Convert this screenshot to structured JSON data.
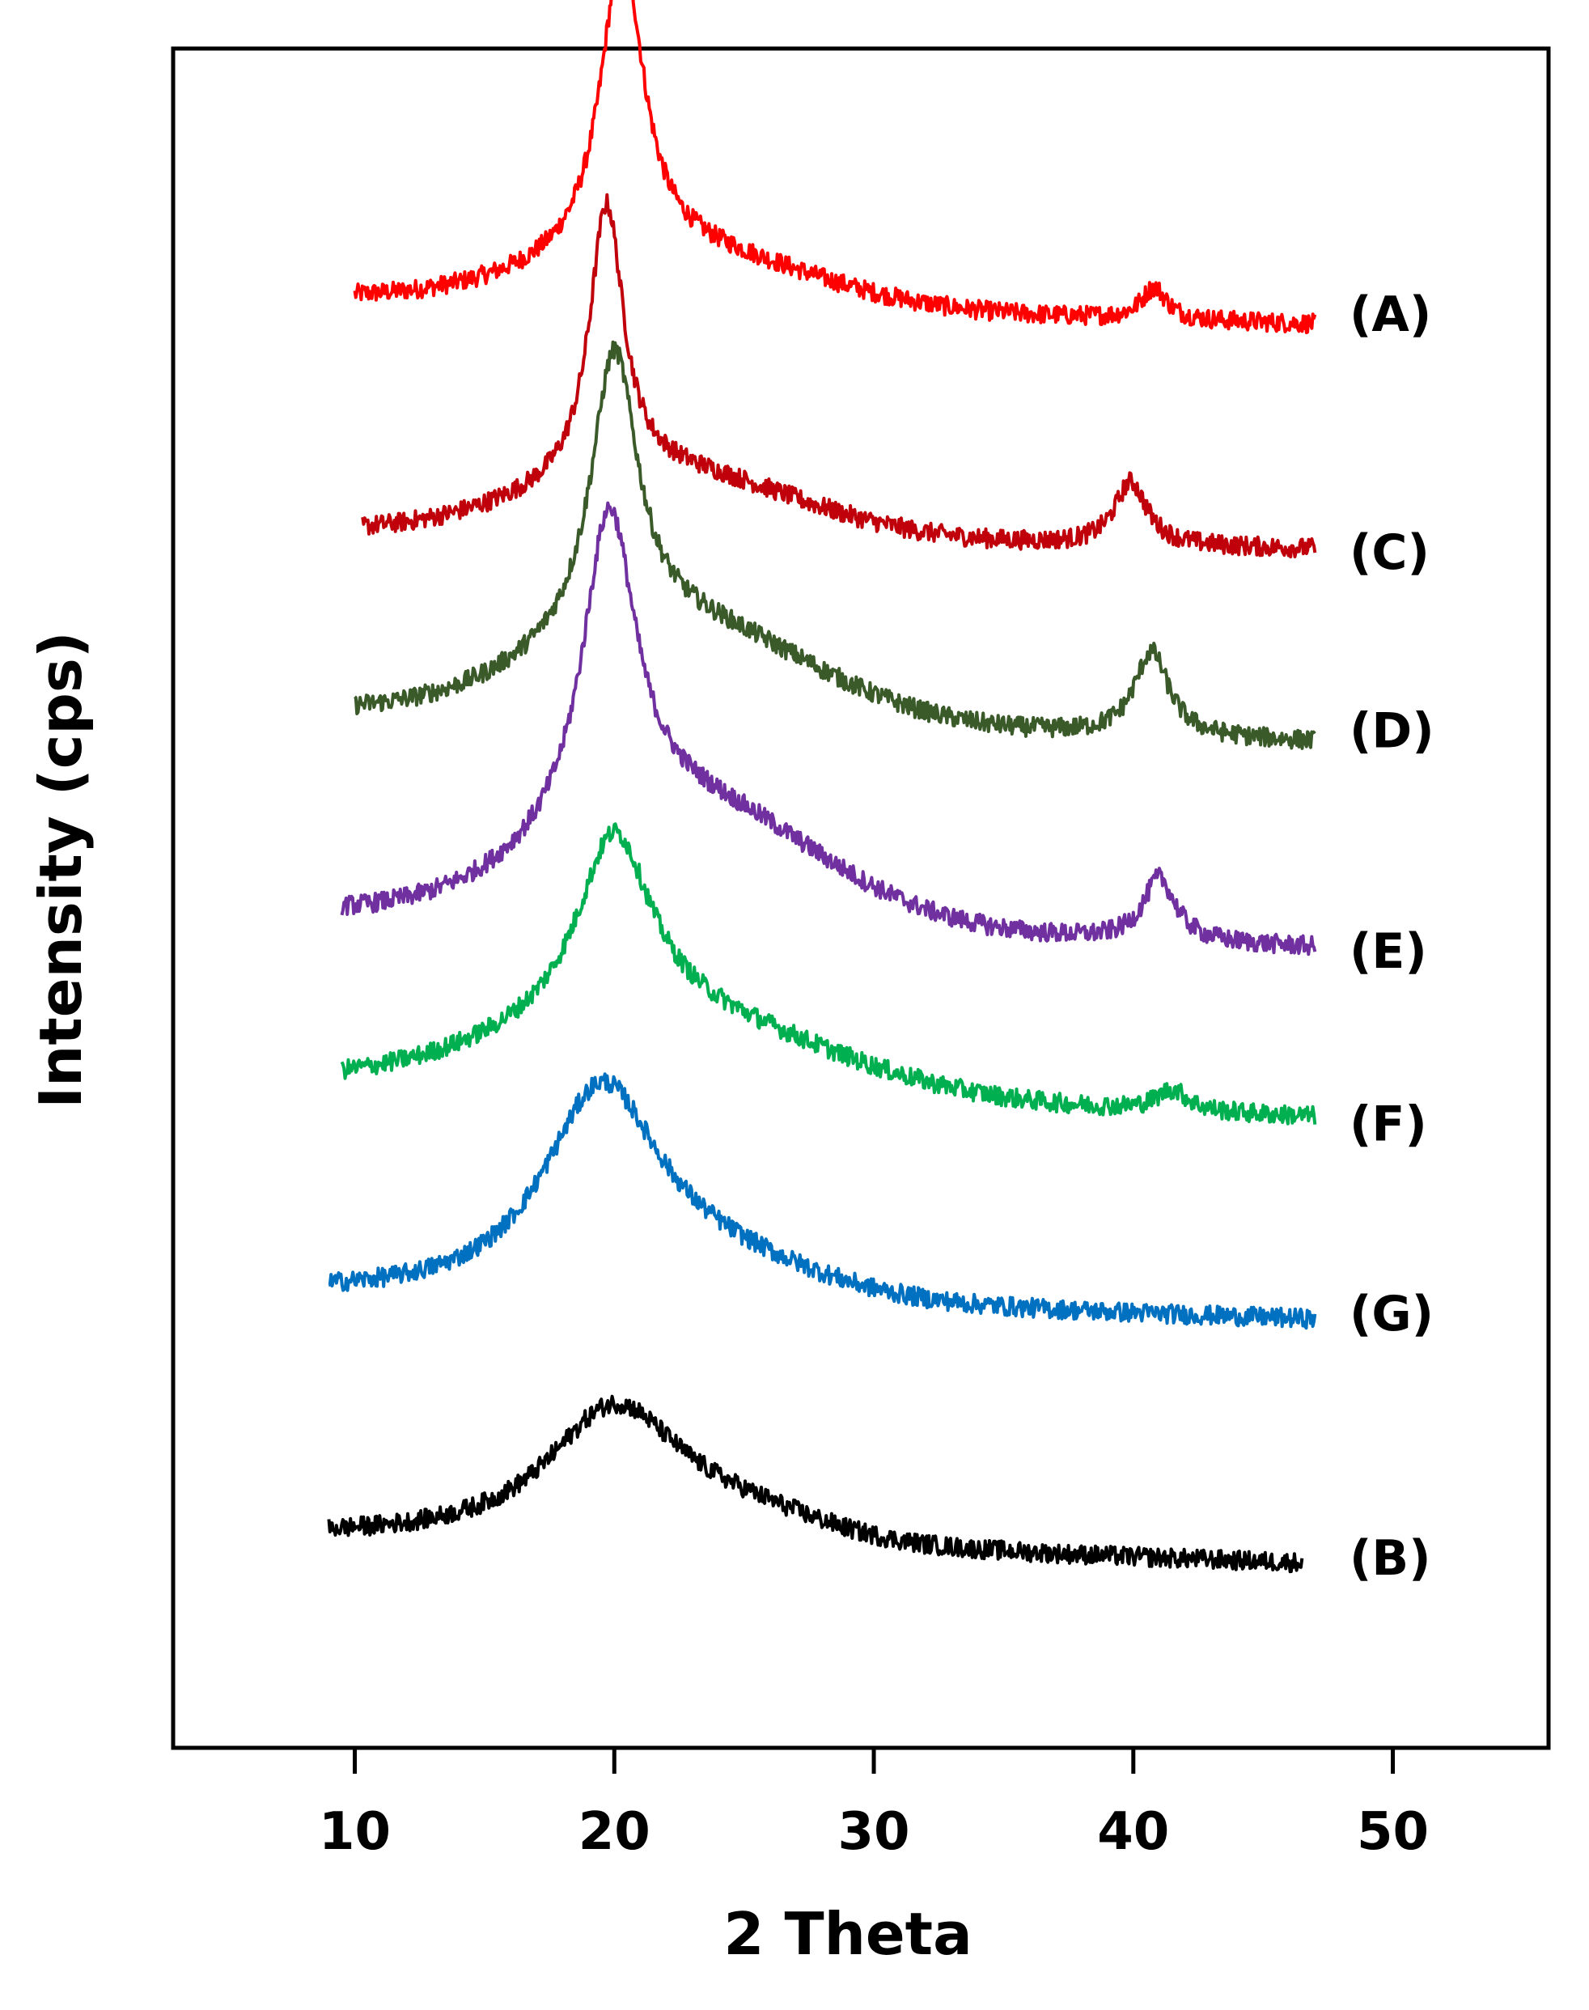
{
  "chart_data": {
    "type": "line",
    "title": "",
    "xlabel": "2 Theta",
    "ylabel": "Intensity (cps)",
    "xlim": [
      3,
      56
    ],
    "xticks": [
      10,
      20,
      30,
      40,
      50
    ],
    "y_ticks_shown": false,
    "grid": false,
    "legend": "inline labels at right end of each trace",
    "series": [
      {
        "name": "(A)",
        "color": "#ff0000",
        "x_start": 10,
        "x_end": 47,
        "offset": 6,
        "baseline": 0.3,
        "peaks": [
          {
            "x": 20.3,
            "height": 1.45,
            "width": 2.0
          },
          {
            "x": 40.8,
            "height": 0.15,
            "width": 1.2
          }
        ],
        "hump": {
          "x": 22.5,
          "height": 0.25,
          "width": 5
        }
      },
      {
        "name": "(C)",
        "color": "#c0000a",
        "x_start": 10.3,
        "x_end": 47,
        "offset": 5,
        "baseline": 0.2,
        "peaks": [
          {
            "x": 19.7,
            "height": 1.3,
            "width": 1.6
          },
          {
            "x": 39.9,
            "height": 0.3,
            "width": 1.5
          }
        ],
        "hump": {
          "x": 22,
          "height": 0.3,
          "width": 5
        }
      },
      {
        "name": "(D)",
        "color": "#3b5a2a",
        "x_start": 10,
        "x_end": 47,
        "offset": 4,
        "baseline": 0.35,
        "peaks": [
          {
            "x": 20.0,
            "height": 1.35,
            "width": 2.2
          },
          {
            "x": 40.7,
            "height": 0.4,
            "width": 1.6
          }
        ],
        "hump": {
          "x": 22.5,
          "height": 0.45,
          "width": 5
        }
      },
      {
        "name": "(E)",
        "color": "#7030a0",
        "x_start": 9.5,
        "x_end": 47,
        "offset": 3,
        "baseline": 0.4,
        "peaks": [
          {
            "x": 19.8,
            "height": 1.5,
            "width": 2.5
          },
          {
            "x": 41.0,
            "height": 0.3,
            "width": 1.5
          }
        ],
        "hump": {
          "x": 22.8,
          "height": 0.55,
          "width": 5
        }
      },
      {
        "name": "(F)",
        "color": "#00b050",
        "x_start": 9.5,
        "x_end": 47,
        "offset": 2.2,
        "baseline": 0.4,
        "peaks": [
          {
            "x": 20.0,
            "height": 0.9,
            "width": 3.5
          },
          {
            "x": 41.5,
            "height": 0.1,
            "width": 1.5
          }
        ],
        "hump": {
          "x": 22,
          "height": 0.35,
          "width": 6
        }
      },
      {
        "name": "(G)",
        "color": "#0070c0",
        "x_start": 9,
        "x_end": 47,
        "offset": 1.3,
        "baseline": 0.3,
        "peaks": [
          {
            "x": 19.5,
            "height": 0.95,
            "width": 5.5
          }
        ],
        "hump": {
          "x": 23.5,
          "height": 0.15,
          "width": 4
        }
      },
      {
        "name": "(B)",
        "color": "#000000",
        "x_start": 9,
        "x_end": 46.5,
        "offset": 0.15,
        "baseline": 0.3,
        "peaks": [
          {
            "x": 20.0,
            "height": 0.65,
            "width": 6.5
          }
        ],
        "hump": {
          "x": 25,
          "height": 0.1,
          "width": 3
        }
      }
    ]
  }
}
